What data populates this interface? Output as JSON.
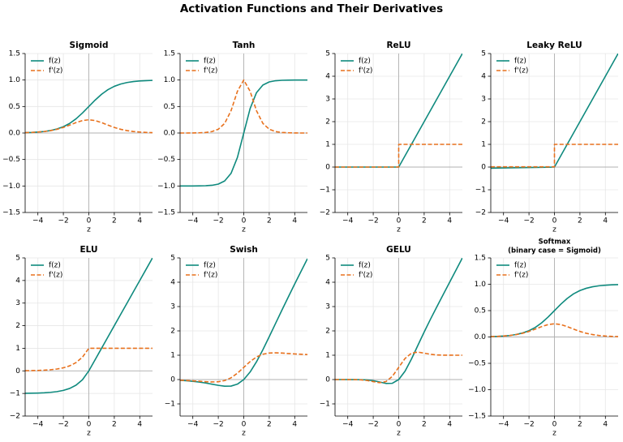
{
  "title": "Activation Functions and Their Derivatives",
  "chart_data": [
    {
      "type": "line",
      "title": "Sigmoid",
      "xlabel": "z",
      "xlim": [
        -5,
        5
      ],
      "ylim": [
        -1.5,
        1.5
      ],
      "xticks": [
        {
          "value": -4,
          "label": "−4"
        },
        {
          "value": -2,
          "label": "−2"
        },
        0,
        2,
        4
      ],
      "yticks": [
        {
          "value": -1.5,
          "label": "−1.5"
        },
        {
          "value": -1,
          "label": "−1.0"
        },
        {
          "value": -0.5,
          "label": "−0.5"
        },
        {
          "value": 0,
          "label": "0.0"
        },
        0.5,
        {
          "value": 1,
          "label": "1.0"
        },
        1.5
      ],
      "grid": true,
      "legend": "upper-left",
      "axhline": 0,
      "axvline": 0,
      "x": [
        -5,
        -4.5,
        -4,
        -3.5,
        -3,
        -2.5,
        -2,
        -1.5,
        -1,
        -0.5,
        0,
        0.5,
        1,
        1.5,
        2,
        2.5,
        3,
        3.5,
        4,
        4.5,
        5
      ],
      "series": [
        {
          "name": "f(z)",
          "color": "#0f8a7e",
          "linestyle": "solid",
          "values": [
            0.007,
            0.011,
            0.018,
            0.029,
            0.047,
            0.076,
            0.119,
            0.182,
            0.269,
            0.378,
            0.5,
            0.622,
            0.731,
            0.818,
            0.881,
            0.924,
            0.953,
            0.971,
            0.982,
            0.989,
            0.993
          ]
        },
        {
          "name": "f'(z)",
          "color": "#e8711d",
          "linestyle": "dashed",
          "values": [
            0.007,
            0.011,
            0.018,
            0.028,
            0.045,
            0.07,
            0.105,
            0.149,
            0.197,
            0.235,
            0.25,
            0.235,
            0.197,
            0.149,
            0.105,
            0.07,
            0.045,
            0.028,
            0.018,
            0.011,
            0.007
          ]
        }
      ]
    },
    {
      "type": "line",
      "title": "Tanh",
      "xlabel": "z",
      "xlim": [
        -5,
        5
      ],
      "ylim": [
        -1.5,
        1.5
      ],
      "xticks": [
        {
          "value": -4,
          "label": "−4"
        },
        {
          "value": -2,
          "label": "−2"
        },
        0,
        2,
        4
      ],
      "yticks": [
        {
          "value": -1.5,
          "label": "−1.5"
        },
        {
          "value": -1,
          "label": "−1.0"
        },
        {
          "value": -0.5,
          "label": "−0.5"
        },
        {
          "value": 0,
          "label": "0.0"
        },
        0.5,
        {
          "value": 1,
          "label": "1.0"
        },
        1.5
      ],
      "grid": true,
      "legend": "upper-left",
      "axhline": 0,
      "axvline": 0,
      "x": [
        -5,
        -4.5,
        -4,
        -3.5,
        -3,
        -2.5,
        -2,
        -1.5,
        -1,
        -0.5,
        0,
        0.5,
        1,
        1.5,
        2,
        2.5,
        3,
        3.5,
        4,
        4.5,
        5
      ],
      "series": [
        {
          "name": "f(z)",
          "color": "#0f8a7e",
          "linestyle": "solid",
          "values": [
            -1,
            -1,
            -0.999,
            -0.998,
            -0.995,
            -0.987,
            -0.964,
            -0.905,
            -0.762,
            -0.462,
            0,
            0.462,
            0.762,
            0.905,
            0.964,
            0.987,
            0.995,
            0.998,
            0.999,
            1,
            1
          ]
        },
        {
          "name": "f'(z)",
          "color": "#e8711d",
          "linestyle": "dashed",
          "values": [
            0,
            0,
            0.001,
            0.004,
            0.01,
            0.027,
            0.071,
            0.181,
            0.42,
            0.786,
            1,
            0.786,
            0.42,
            0.181,
            0.071,
            0.027,
            0.01,
            0.004,
            0.001,
            0,
            0
          ]
        }
      ]
    },
    {
      "type": "line",
      "title": "ReLU",
      "xlabel": "z",
      "xlim": [
        -5,
        5
      ],
      "ylim": [
        -2,
        5
      ],
      "xticks": [
        {
          "value": -4,
          "label": "−4"
        },
        {
          "value": -2,
          "label": "−2"
        },
        0,
        2,
        4
      ],
      "yticks": [
        {
          "value": -2,
          "label": "−2"
        },
        {
          "value": -1,
          "label": "−1"
        },
        0,
        1,
        2,
        3,
        4,
        5
      ],
      "grid": true,
      "legend": "upper-left",
      "axhline": 0,
      "axvline": 0,
      "x": [
        -5,
        -4.5,
        -4,
        -3.5,
        -3,
        -2.5,
        -2,
        -1.5,
        -1,
        -0.5,
        0,
        0,
        0.5,
        1,
        1.5,
        2,
        2.5,
        3,
        3.5,
        4,
        4.5,
        5
      ],
      "series": [
        {
          "name": "f(z)",
          "color": "#0f8a7e",
          "linestyle": "solid",
          "values": [
            0,
            0,
            0,
            0,
            0,
            0,
            0,
            0,
            0,
            0,
            0,
            0,
            0.5,
            1,
            1.5,
            2,
            2.5,
            3,
            3.5,
            4,
            4.5,
            5
          ]
        },
        {
          "name": "f'(z)",
          "color": "#e8711d",
          "linestyle": "dashed",
          "values": [
            0,
            0,
            0,
            0,
            0,
            0,
            0,
            0,
            0,
            0,
            0,
            1,
            1,
            1,
            1,
            1,
            1,
            1,
            1,
            1,
            1,
            1
          ]
        }
      ]
    },
    {
      "type": "line",
      "title": "Leaky ReLU",
      "xlabel": "z",
      "xlim": [
        -5,
        5
      ],
      "ylim": [
        -2,
        5
      ],
      "xticks": [
        {
          "value": -4,
          "label": "−4"
        },
        {
          "value": -2,
          "label": "−2"
        },
        0,
        2,
        4
      ],
      "yticks": [
        {
          "value": -2,
          "label": "−2"
        },
        {
          "value": -1,
          "label": "−1"
        },
        0,
        1,
        2,
        3,
        4,
        5
      ],
      "grid": true,
      "legend": "upper-left",
      "axhline": 0,
      "axvline": 0,
      "x": [
        -5,
        -4.5,
        -4,
        -3.5,
        -3,
        -2.5,
        -2,
        -1.5,
        -1,
        -0.5,
        0,
        0,
        0.5,
        1,
        1.5,
        2,
        2.5,
        3,
        3.5,
        4,
        4.5,
        5
      ],
      "series": [
        {
          "name": "f(z)",
          "color": "#0f8a7e",
          "linestyle": "solid",
          "values": [
            -0.05,
            -0.045,
            -0.04,
            -0.035,
            -0.03,
            -0.025,
            -0.02,
            -0.015,
            -0.01,
            -0.005,
            0,
            0,
            0.5,
            1,
            1.5,
            2,
            2.5,
            3,
            3.5,
            4,
            4.5,
            5
          ]
        },
        {
          "name": "f'(z)",
          "color": "#e8711d",
          "linestyle": "dashed",
          "values": [
            0.01,
            0.01,
            0.01,
            0.01,
            0.01,
            0.01,
            0.01,
            0.01,
            0.01,
            0.01,
            0.01,
            1,
            1,
            1,
            1,
            1,
            1,
            1,
            1,
            1,
            1,
            1
          ]
        }
      ]
    },
    {
      "type": "line",
      "title": "ELU",
      "xlabel": "z",
      "xlim": [
        -5,
        5
      ],
      "ylim": [
        -2,
        5
      ],
      "xticks": [
        {
          "value": -4,
          "label": "−4"
        },
        {
          "value": -2,
          "label": "−2"
        },
        0,
        2,
        4
      ],
      "yticks": [
        {
          "value": -2,
          "label": "−2"
        },
        {
          "value": -1,
          "label": "−1"
        },
        0,
        1,
        2,
        3,
        4,
        5
      ],
      "grid": true,
      "legend": "upper-left",
      "axhline": 0,
      "axvline": 0,
      "x": [
        -5,
        -4.5,
        -4,
        -3.5,
        -3,
        -2.5,
        -2,
        -1.5,
        -1,
        -0.5,
        0,
        0.5,
        1,
        1.5,
        2,
        2.5,
        3,
        3.5,
        4,
        4.5,
        5
      ],
      "series": [
        {
          "name": "f(z)",
          "color": "#0f8a7e",
          "linestyle": "solid",
          "values": [
            -0.993,
            -0.989,
            -0.982,
            -0.97,
            -0.95,
            -0.918,
            -0.865,
            -0.777,
            -0.632,
            -0.393,
            0,
            0.5,
            1,
            1.5,
            2,
            2.5,
            3,
            3.5,
            4,
            4.5,
            5
          ]
        },
        {
          "name": "f'(z)",
          "color": "#e8711d",
          "linestyle": "dashed",
          "values": [
            0.007,
            0.011,
            0.018,
            0.03,
            0.05,
            0.082,
            0.135,
            0.223,
            0.368,
            0.607,
            1,
            1,
            1,
            1,
            1,
            1,
            1,
            1,
            1,
            1,
            1
          ]
        }
      ]
    },
    {
      "type": "line",
      "title": "Swish",
      "xlabel": "z",
      "xlim": [
        -5,
        5
      ],
      "ylim": [
        -1.5,
        5
      ],
      "xticks": [
        {
          "value": -4,
          "label": "−4"
        },
        {
          "value": -2,
          "label": "−2"
        },
        0,
        2,
        4
      ],
      "yticks": [
        {
          "value": -1,
          "label": "−1"
        },
        0,
        1,
        2,
        3,
        4,
        5
      ],
      "grid": true,
      "legend": "upper-left",
      "axhline": 0,
      "axvline": 0,
      "x": [
        -5,
        -4.5,
        -4,
        -3.5,
        -3,
        -2.5,
        -2,
        -1.5,
        -1,
        -0.5,
        0,
        0.5,
        1,
        1.5,
        2,
        2.5,
        3,
        3.5,
        4,
        4.5,
        5
      ],
      "series": [
        {
          "name": "f(z)",
          "color": "#0f8a7e",
          "linestyle": "solid",
          "values": [
            -0.033,
            -0.049,
            -0.072,
            -0.103,
            -0.142,
            -0.19,
            -0.238,
            -0.274,
            -0.269,
            -0.189,
            0,
            0.311,
            0.731,
            1.226,
            1.762,
            2.31,
            2.858,
            3.397,
            3.928,
            4.451,
            4.967
          ]
        },
        {
          "name": "f'(z)",
          "color": "#e8711d",
          "linestyle": "dashed",
          "values": [
            -0.026,
            -0.038,
            -0.053,
            -0.07,
            -0.088,
            -0.099,
            -0.091,
            -0.041,
            0.072,
            0.26,
            0.5,
            0.74,
            0.928,
            1.041,
            1.091,
            1.099,
            1.088,
            1.07,
            1.053,
            1.038,
            1.026
          ]
        }
      ]
    },
    {
      "type": "line",
      "title": "GELU",
      "xlabel": "z",
      "xlim": [
        -5,
        5
      ],
      "ylim": [
        -1.5,
        5
      ],
      "xticks": [
        {
          "value": -4,
          "label": "−4"
        },
        {
          "value": -2,
          "label": "−2"
        },
        0,
        2,
        4
      ],
      "yticks": [
        {
          "value": -1,
          "label": "−1"
        },
        0,
        1,
        2,
        3,
        4,
        5
      ],
      "grid": true,
      "legend": "upper-left",
      "axhline": 0,
      "axvline": 0,
      "x": [
        -5,
        -4.5,
        -4,
        -3.5,
        -3,
        -2.5,
        -2,
        -1.5,
        -1,
        -0.5,
        0,
        0.5,
        1,
        1.5,
        2,
        2.5,
        3,
        3.5,
        4,
        4.5,
        5
      ],
      "series": [
        {
          "name": "f(z)",
          "color": "#0f8a7e",
          "linestyle": "solid",
          "values": [
            0,
            0,
            0,
            -0.001,
            -0.004,
            -0.015,
            -0.046,
            -0.1,
            -0.159,
            -0.154,
            0,
            0.346,
            0.841,
            1.4,
            1.954,
            2.485,
            2.996,
            3.499,
            4,
            4.5,
            5
          ]
        },
        {
          "name": "f'(z)",
          "color": "#e8711d",
          "linestyle": "dashed",
          "values": [
            0,
            0,
            -0.001,
            -0.003,
            -0.012,
            -0.038,
            -0.085,
            -0.128,
            -0.083,
            0.132,
            0.5,
            0.868,
            1.083,
            1.128,
            1.085,
            1.038,
            1.012,
            1.003,
            1.001,
            1,
            1
          ]
        }
      ]
    },
    {
      "type": "line",
      "title": "Softmax",
      "subtitle": "(binary case = Sigmoid)",
      "xlabel": "z",
      "xlim": [
        -5,
        5
      ],
      "ylim": [
        -1.5,
        1.5
      ],
      "xticks": [
        {
          "value": -4,
          "label": "−4"
        },
        {
          "value": -2,
          "label": "−2"
        },
        0,
        2,
        4
      ],
      "yticks": [
        {
          "value": -1.5,
          "label": "−1.5"
        },
        {
          "value": -1,
          "label": "−1.0"
        },
        {
          "value": -0.5,
          "label": "−0.5"
        },
        {
          "value": 0,
          "label": "0.0"
        },
        0.5,
        {
          "value": 1,
          "label": "1.0"
        },
        1.5
      ],
      "grid": true,
      "legend": "upper-left",
      "axhline": 0,
      "axvline": 0,
      "x": [
        -5,
        -4.5,
        -4,
        -3.5,
        -3,
        -2.5,
        -2,
        -1.5,
        -1,
        -0.5,
        0,
        0.5,
        1,
        1.5,
        2,
        2.5,
        3,
        3.5,
        4,
        4.5,
        5
      ],
      "series": [
        {
          "name": "f(z)",
          "color": "#0f8a7e",
          "linestyle": "solid",
          "values": [
            0.007,
            0.011,
            0.018,
            0.029,
            0.047,
            0.076,
            0.119,
            0.182,
            0.269,
            0.378,
            0.5,
            0.622,
            0.731,
            0.818,
            0.881,
            0.924,
            0.953,
            0.971,
            0.982,
            0.989,
            0.993
          ]
        },
        {
          "name": "f'(z)",
          "color": "#e8711d",
          "linestyle": "dashed",
          "values": [
            0.007,
            0.011,
            0.018,
            0.028,
            0.045,
            0.07,
            0.105,
            0.149,
            0.197,
            0.235,
            0.25,
            0.235,
            0.197,
            0.149,
            0.105,
            0.07,
            0.045,
            0.028,
            0.018,
            0.011,
            0.007
          ]
        }
      ]
    }
  ]
}
